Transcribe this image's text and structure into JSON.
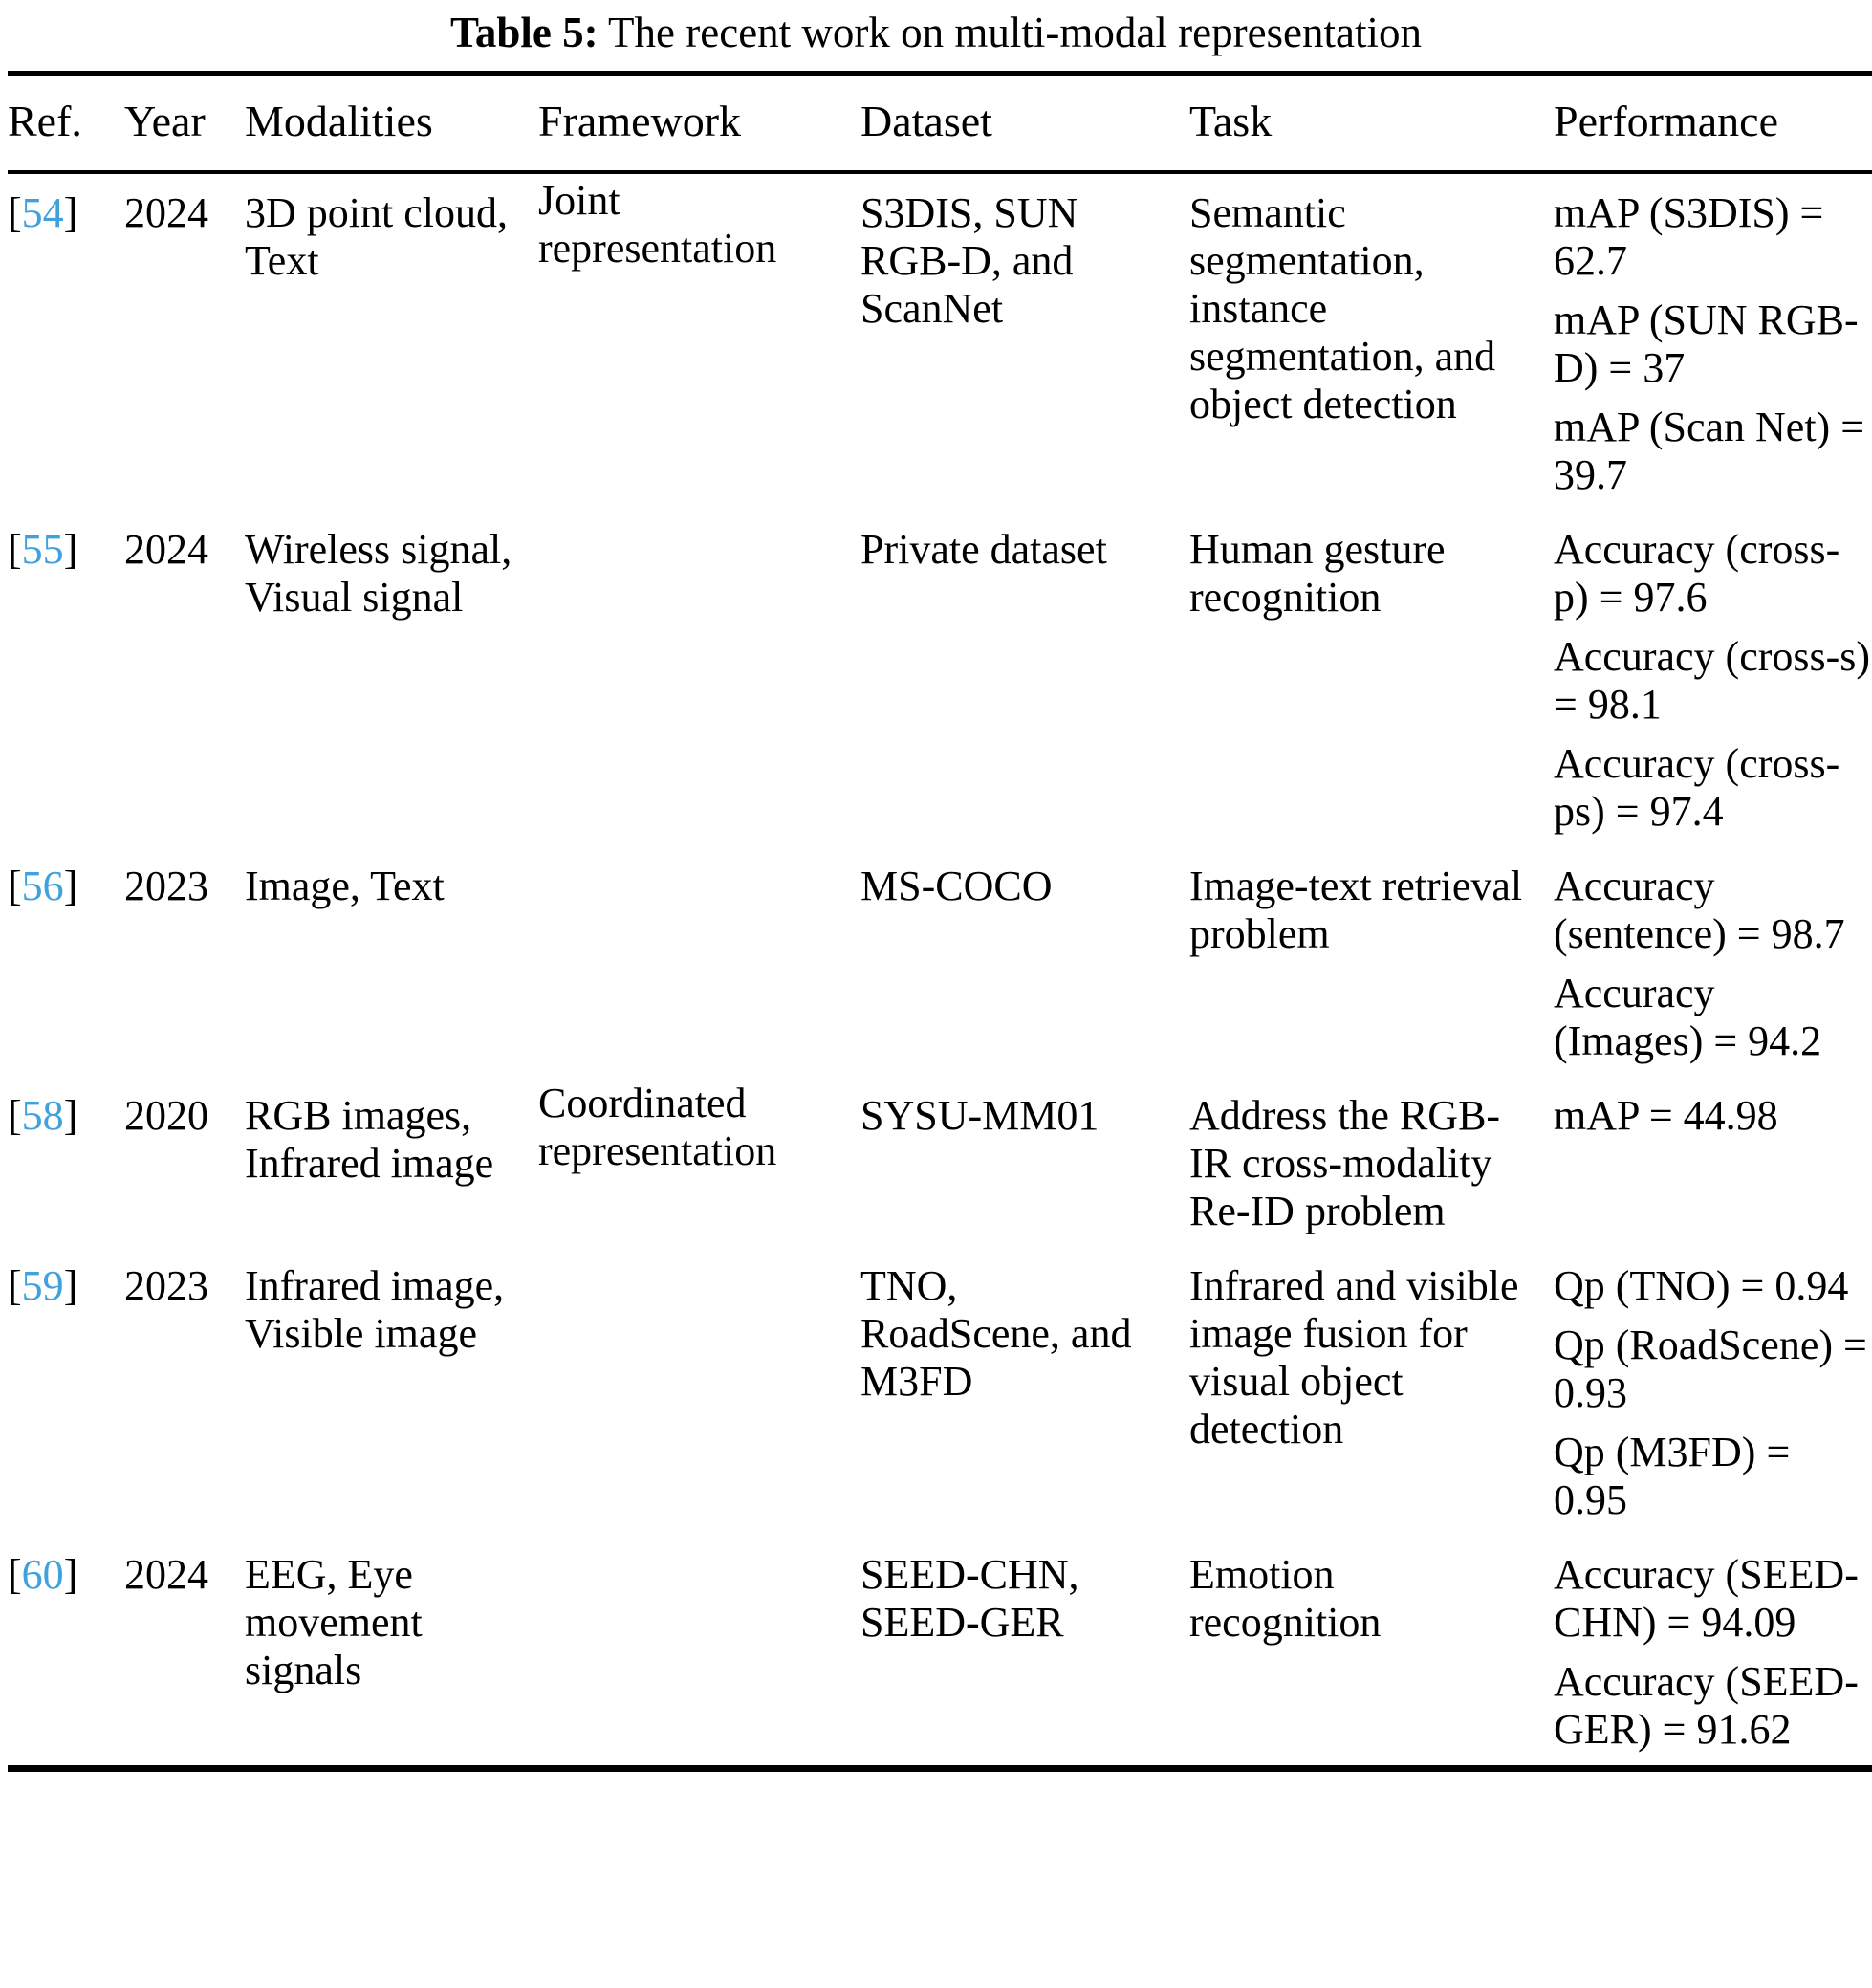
{
  "title": {
    "label": "Table 5:",
    "text": "The recent work on multi-modal representation"
  },
  "citation": {
    "open": "[",
    "close": "]"
  },
  "colors": {
    "citation_blue": "#3fa2dc",
    "rule_black": "#000000"
  },
  "table": {
    "headers": [
      "Ref.",
      "Year",
      "Modalities",
      "Framework",
      "Dataset",
      "Task",
      "Performance"
    ],
    "rows": [
      {
        "ref": "54",
        "year": "2024",
        "modalities": "3D point cloud, Text",
        "framework": "Joint representation",
        "dataset": "S3DIS, SUN RGB-D, and ScanNet",
        "task": "Semantic segmentation, instance segmentation, and object detection",
        "performance": [
          "mAP (S3DIS) = 62.7",
          "mAP (SUN RGB-D) = 37",
          "mAP (Scan Net) = 39.7"
        ]
      },
      {
        "ref": "55",
        "year": "2024",
        "modalities": "Wireless signal, Visual signal",
        "framework": "",
        "dataset": "Private dataset",
        "task": "Human gesture recognition",
        "performance": [
          "Accuracy (cross-p) = 97.6",
          "Accuracy (cross-s) = 98.1",
          "Accuracy (cross-ps) = 97.4"
        ]
      },
      {
        "ref": "56",
        "year": "2023",
        "modalities": "Image, Text",
        "framework": "",
        "dataset": "MS-COCO",
        "task": "Image-text retrieval problem",
        "performance": [
          "Accuracy (sentence) = 98.7",
          "Accuracy (Images) = 94.2"
        ]
      },
      {
        "ref": "58",
        "year": "2020",
        "modalities": "RGB images, Infrared image",
        "framework": "Coordinated representation",
        "dataset": "SYSU-MM01",
        "task": "Address the RGB-IR cross-modality Re-ID problem",
        "performance": [
          "mAP = 44.98"
        ]
      },
      {
        "ref": "59",
        "year": "2023",
        "modalities": "Infrared image, Visible image",
        "framework": "",
        "dataset": "TNO, RoadScene, and M3FD",
        "task": "Infrared and visible image fusion for visual object detection",
        "performance": [
          "Qp (TNO) = 0.94",
          "Qp (RoadScene) = 0.93",
          "Qp (M3FD) = 0.95"
        ]
      },
      {
        "ref": "60",
        "year": "2024",
        "modalities": "EEG, Eye movement signals",
        "framework": "",
        "dataset": "SEED-CHN, SEED-GER",
        "task": "Emotion recognition",
        "performance": [
          "Accuracy (SEED-CHN) = 94.09",
          "Accuracy (SEED-GER) = 91.62"
        ]
      }
    ]
  }
}
